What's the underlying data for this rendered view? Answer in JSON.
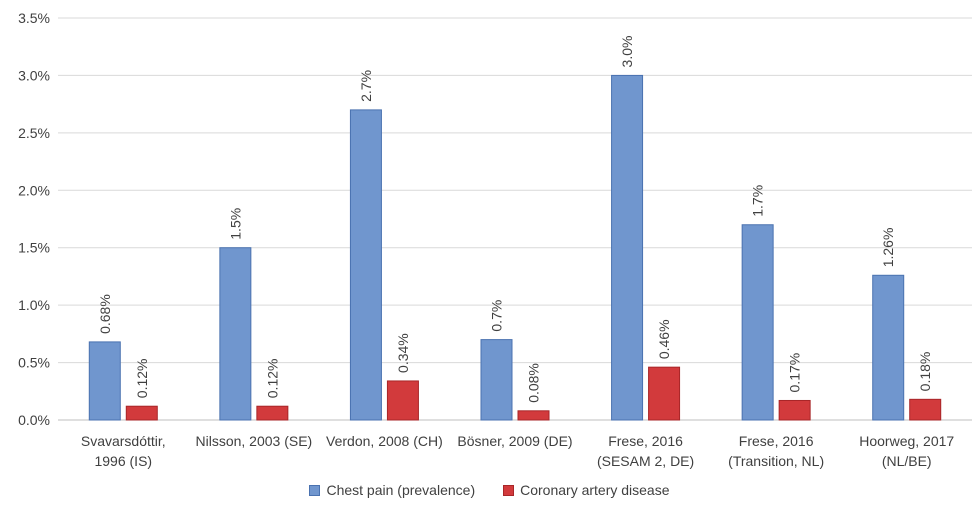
{
  "chart_data": {
    "type": "bar",
    "title": "",
    "xlabel": "",
    "ylabel": "",
    "ylim": [
      0,
      3.5
    ],
    "yticks": [
      "0.0%",
      "0.5%",
      "1.0%",
      "1.5%",
      "2.0%",
      "2.5%",
      "3.0%",
      "3.5%"
    ],
    "grid": true,
    "legend_position": "bottom",
    "categories": [
      [
        "Svavarsdóttir,",
        "1996 (IS)"
      ],
      [
        "Nilsson, 2003 (SE)"
      ],
      [
        "Verdon, 2008 (CH)"
      ],
      [
        "Bösner, 2009 (DE)"
      ],
      [
        "Frese, 2016",
        "(SESAM 2, DE)"
      ],
      [
        "Frese, 2016",
        "(Transition, NL)"
      ],
      [
        "Hoorweg, 2017",
        "(NL/BE)"
      ]
    ],
    "series": [
      {
        "name": "Chest pain (prevalence)",
        "color": "#7096CE",
        "stroke": "#4A72B0",
        "values": [
          0.68,
          1.5,
          2.7,
          0.7,
          3.0,
          1.7,
          1.26
        ],
        "labels": [
          "0.68%",
          "1.5%",
          "2.7%",
          "0.7%",
          "3.0%",
          "1.7%",
          "1.26%"
        ]
      },
      {
        "name": "Coronary artery disease",
        "color": "#D23A3C",
        "stroke": "#A82628",
        "values": [
          0.12,
          0.12,
          0.34,
          0.08,
          0.46,
          0.17,
          0.18
        ],
        "labels": [
          "0.12%",
          "0.12%",
          "0.34%",
          "0.08%",
          "0.46%",
          "0.17%",
          "0.18%"
        ]
      }
    ]
  }
}
